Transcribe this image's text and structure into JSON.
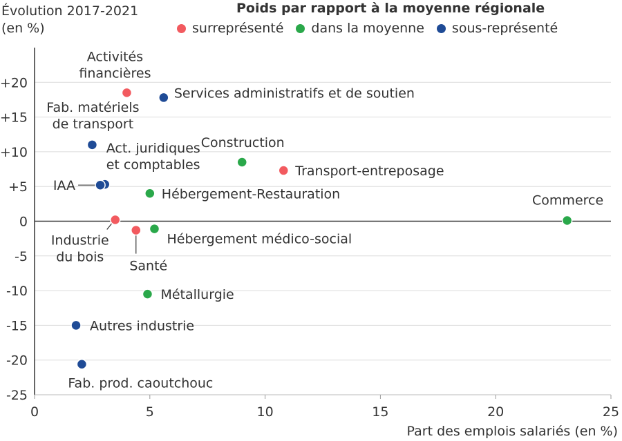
{
  "chart_data": {
    "type": "scatter",
    "ylabel": "Évolution 2017-2021",
    "ylabel_unit": "(en %)",
    "xlabel": "Part des emplois salariés (en %)",
    "xlim": [
      0,
      25
    ],
    "ylim": [
      -25,
      25
    ],
    "xticks": [
      0,
      5,
      10,
      15,
      20,
      25
    ],
    "xtick_labels": [
      "0",
      "5",
      "10",
      "15",
      "20",
      "25"
    ],
    "yticks": [
      20,
      15,
      10,
      5,
      0,
      -5,
      -10,
      -15,
      -20,
      -25
    ],
    "ytick_labels": [
      "+20",
      "+15",
      "+10",
      "+5",
      "0",
      "-5",
      "-10",
      "-15",
      "-20",
      "-25"
    ],
    "grid": "horizontal",
    "legend_title": "Poids par rapport à la moyenne régionale",
    "legend_position": "top",
    "categories": [
      {
        "key": "sur",
        "label": "surreprésenté",
        "color": "#f25a5f"
      },
      {
        "key": "moy",
        "label": "dans la moyenne",
        "color": "#2aa84a"
      },
      {
        "key": "sous",
        "label": "sous-représenté",
        "color": "#1f4b96"
      }
    ],
    "points": [
      {
        "label": "Activités financières",
        "x": 4.0,
        "y": 18.5,
        "category": "sur"
      },
      {
        "label": "Services administratifs et de soutien",
        "x": 5.6,
        "y": 17.8,
        "category": "sous"
      },
      {
        "label": "Fab. matériels de transport",
        "x": 2.5,
        "y": 11.0,
        "category": "sous"
      },
      {
        "label": "Act. juridiques et comptables",
        "x": 3.05,
        "y": 5.3,
        "category": "sous"
      },
      {
        "label": "IAA",
        "x": 2.85,
        "y": 5.2,
        "category": "sous"
      },
      {
        "label": "Construction",
        "x": 9.0,
        "y": 8.5,
        "category": "moy"
      },
      {
        "label": "Transport-entreposage",
        "x": 10.8,
        "y": 7.3,
        "category": "sur"
      },
      {
        "label": "Hébergement-Restauration",
        "x": 5.0,
        "y": 4.0,
        "category": "moy"
      },
      {
        "label": "Industrie du bois",
        "x": 3.5,
        "y": 0.2,
        "category": "sur"
      },
      {
        "label": "Santé",
        "x": 4.4,
        "y": -1.3,
        "category": "sur"
      },
      {
        "label": "Hébergement médico-social",
        "x": 5.2,
        "y": -1.1,
        "category": "moy"
      },
      {
        "label": "Commerce",
        "x": 23.1,
        "y": 0.1,
        "category": "moy"
      },
      {
        "label": "Métallurgie",
        "x": 4.9,
        "y": -10.5,
        "category": "moy"
      },
      {
        "label": "Autres industrie",
        "x": 1.8,
        "y": -15.0,
        "category": "sous"
      },
      {
        "label": "Fab. prod. caoutchouc",
        "x": 2.05,
        "y": -20.6,
        "category": "sous"
      }
    ]
  }
}
